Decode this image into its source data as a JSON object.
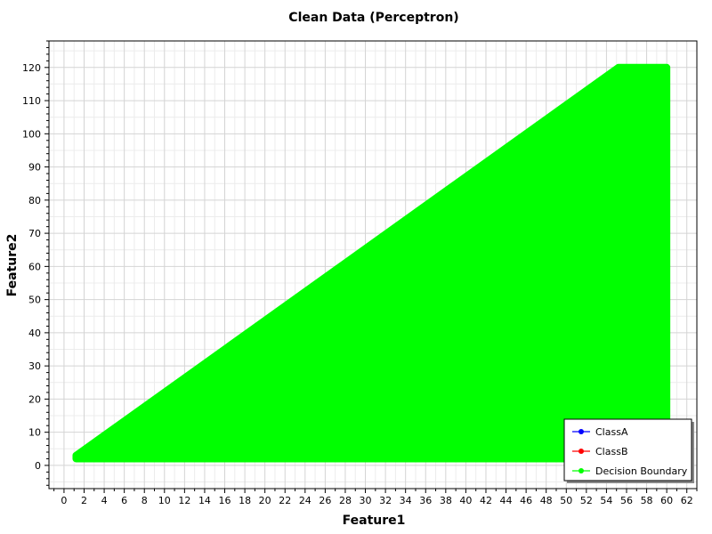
{
  "chart_data": {
    "type": "line",
    "title": "Clean Data (Perceptron)",
    "xlabel": "Feature1",
    "ylabel": "Feature2",
    "xlim": [
      -1.5,
      63
    ],
    "ylim": [
      -7,
      128
    ],
    "x_ticks": [
      0,
      2,
      4,
      6,
      8,
      10,
      12,
      14,
      16,
      18,
      20,
      22,
      24,
      26,
      28,
      30,
      32,
      34,
      36,
      38,
      40,
      42,
      44,
      46,
      48,
      50,
      52,
      54,
      56,
      58,
      60,
      62
    ],
    "y_ticks": [
      0,
      10,
      20,
      30,
      40,
      50,
      60,
      70,
      80,
      90,
      100,
      110,
      120
    ],
    "grid": true,
    "legend_position": "bottom-right",
    "series": [
      {
        "name": "ClassA",
        "color": "#0000ff",
        "x": [],
        "y": []
      },
      {
        "name": "ClassB",
        "color": "#ff0000",
        "x": [],
        "y": []
      },
      {
        "name": "Decision Boundary",
        "color": "#00ff00",
        "x": [
          1.2,
          55.2,
          60.0,
          60.0,
          1.2
        ],
        "y": [
          3.0,
          120.0,
          120.0,
          2.0,
          2.0
        ]
      }
    ]
  }
}
